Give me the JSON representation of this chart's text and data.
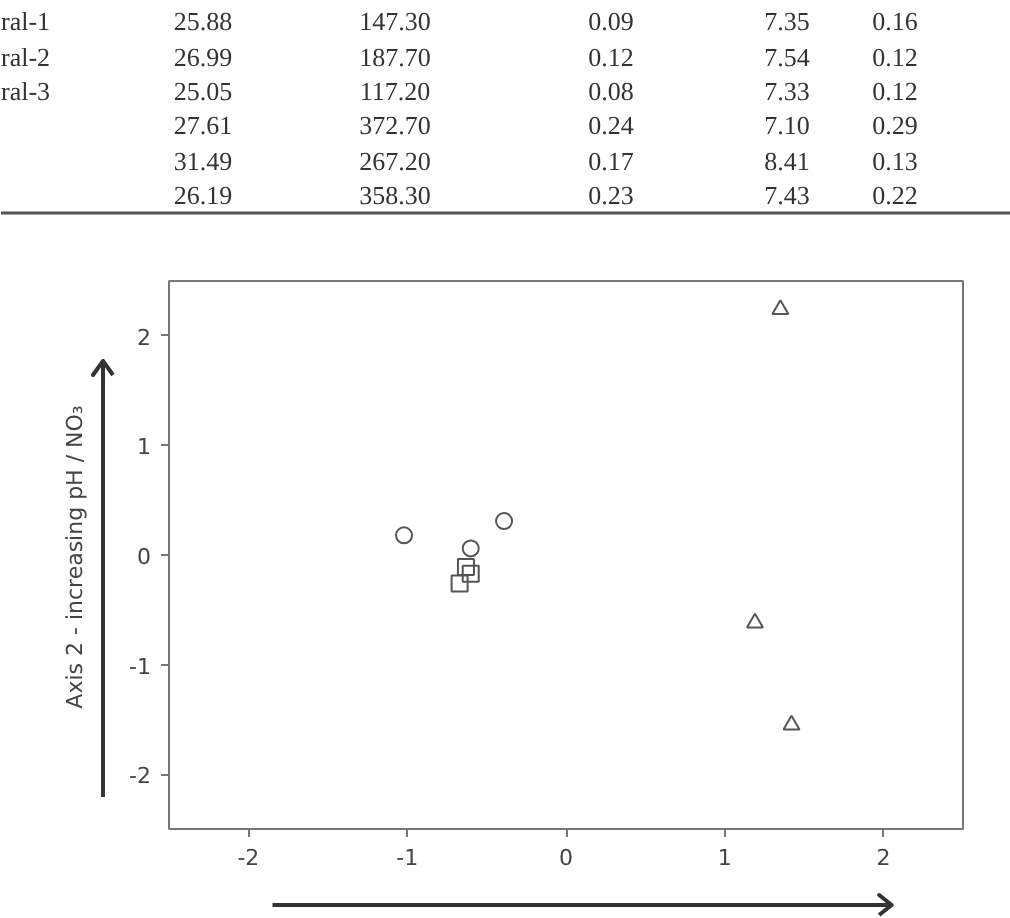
{
  "chart_data": [
    {
      "type": "other",
      "categories": [
        "ral-1",
        "ral-2",
        "ral-3",
        null,
        null,
        null
      ],
      "annotations": [
        "25.88",
        "147.30",
        "0.09",
        "7.35",
        "0.16",
        "26.99",
        "187.70",
        "0.12",
        "7.54",
        "0.12",
        "25.05",
        "117.20",
        "0.08",
        "7.33",
        "0.12",
        "27.61",
        "372.70",
        "0.24",
        "7.10",
        "0.29",
        "31.49",
        "267.20",
        "0.17",
        "8.41",
        "0.13",
        "26.19",
        "358.30",
        "0.23",
        "7.43",
        "0.22"
      ]
    },
    {
      "type": "scatter",
      "ylabel": "Axis 2 - increasing pH / NO₃",
      "xlim": [
        -2.5,
        2.5
      ],
      "ylim": [
        -2.5,
        2.5
      ],
      "xticks": [
        -2,
        -1,
        0,
        1,
        2
      ],
      "yticks": [
        -2,
        -1,
        0,
        1,
        2
      ],
      "grid": false,
      "series": [
        {
          "color": "#555555",
          "marker": "circle",
          "x": [
            -1.02,
            -0.39,
            -0.6
          ],
          "values": [
            0.18,
            0.31,
            0.06
          ]
        },
        {
          "color": "#555555",
          "marker": "square",
          "x": [
            -0.63,
            -0.6,
            -0.67
          ],
          "values": [
            -0.11,
            -0.17,
            -0.26
          ]
        },
        {
          "color": "#555555",
          "marker": "triangle",
          "x": [
            1.35,
            1.19,
            1.42
          ],
          "values": [
            2.24,
            -0.62,
            -1.55
          ]
        }
      ]
    }
  ]
}
